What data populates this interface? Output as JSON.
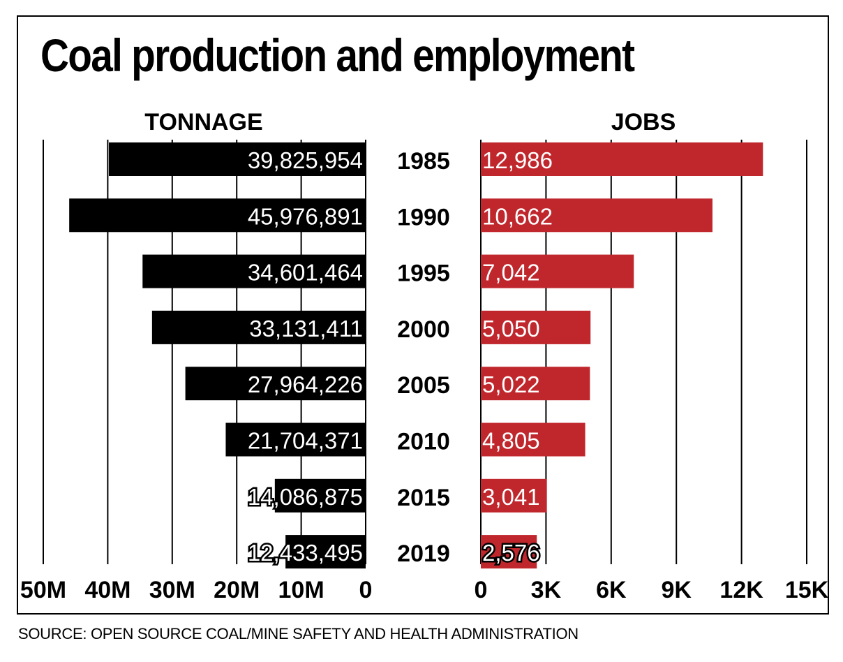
{
  "title": "Coal production and employment",
  "source": "SOURCE: OPEN SOURCE COAL/MINE SAFETY AND HEALTH ADMINISTRATION",
  "colors": {
    "tonnage_bar": "#000000",
    "jobs_bar": "#c0272d",
    "label_text": "#ffffff"
  },
  "chart_data": [
    {
      "type": "bar",
      "orientation": "horizontal",
      "direction": "right-to-left",
      "title": "TONNAGE",
      "categories": [
        "1985",
        "1990",
        "1995",
        "2000",
        "2005",
        "2010",
        "2015",
        "2019"
      ],
      "values": [
        39825954,
        45976891,
        34601464,
        33131411,
        27964226,
        21704371,
        14086875,
        12433495
      ],
      "data_labels": [
        "39,825,954",
        "45,976,891",
        "34,601,464",
        "33,131,411",
        "27,964,226",
        "21,704,371",
        "14,086,875",
        "12,433,495"
      ],
      "xlim": [
        0,
        50000000
      ],
      "ticks": [
        50000000,
        40000000,
        30000000,
        20000000,
        10000000,
        0
      ],
      "tick_labels": [
        "50M",
        "40M",
        "30M",
        "20M",
        "10M",
        "0"
      ],
      "grid": true
    },
    {
      "type": "bar",
      "orientation": "horizontal",
      "direction": "left-to-right",
      "title": "JOBS",
      "categories": [
        "1985",
        "1990",
        "1995",
        "2000",
        "2005",
        "2010",
        "2015",
        "2019"
      ],
      "values": [
        12986,
        10662,
        7042,
        5050,
        5022,
        4805,
        3041,
        2576
      ],
      "data_labels": [
        "12,986",
        "10,662",
        "7,042",
        "5,050",
        "5,022",
        "4,805",
        "3,041",
        "2,576"
      ],
      "xlim": [
        0,
        15000
      ],
      "ticks": [
        0,
        3000,
        6000,
        9000,
        12000,
        15000
      ],
      "tick_labels": [
        "0",
        "3K",
        "6K",
        "9K",
        "12K",
        "15K"
      ],
      "grid": true
    }
  ]
}
